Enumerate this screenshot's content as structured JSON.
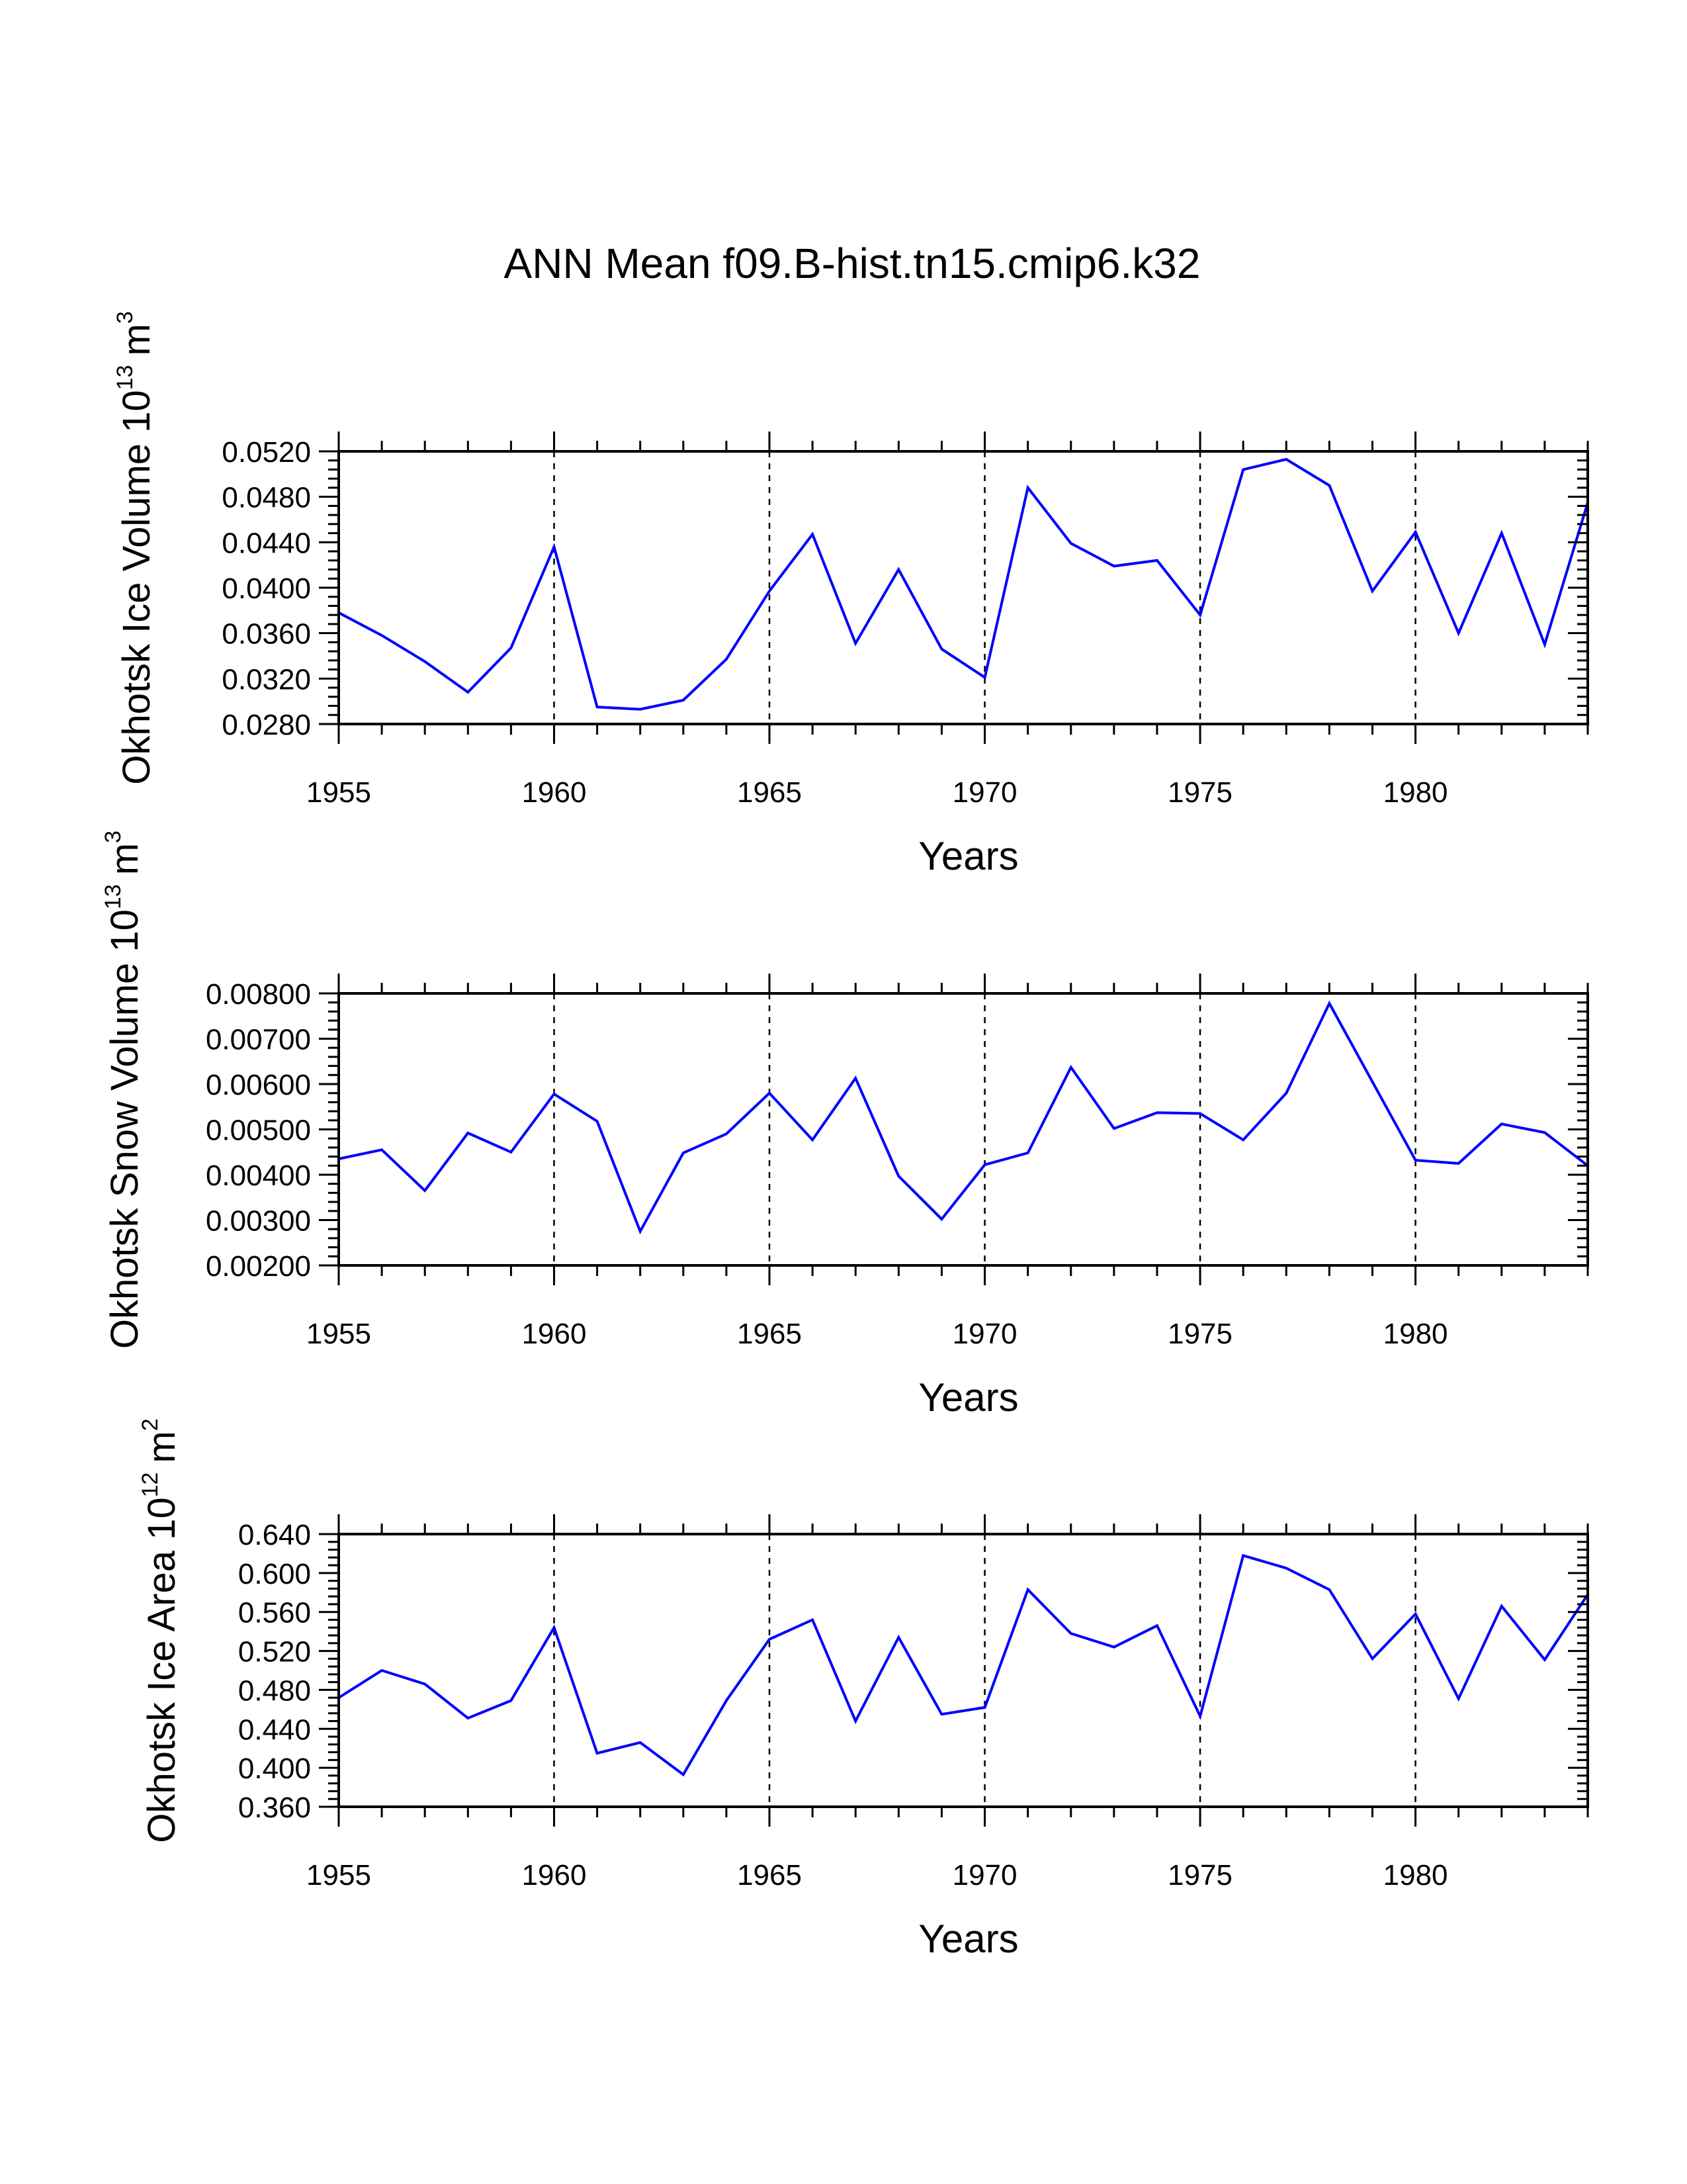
{
  "title": "ANN Mean f09.B-hist.tn15.cmip6.k32",
  "colors": {
    "line": "#0000ff",
    "axes": "#000000",
    "grid": "#000000",
    "background": "#ffffff"
  },
  "chart_data": [
    {
      "type": "line",
      "title": "",
      "xlabel": "Years",
      "ylabel": "Okhotsk Ice Volume 10",
      "ylabel_exponent": "13",
      "ylabel_unit": "m",
      "ylabel_unit_exponent": "3",
      "xlim": [
        1955,
        1984
      ],
      "ylim": [
        0.028,
        0.052
      ],
      "xticks": [
        1955,
        1960,
        1965,
        1970,
        1975,
        1980
      ],
      "xtick_labels": [
        "1955",
        "1960",
        "1965",
        "1970",
        "1975",
        "1980"
      ],
      "yticks": [
        0.028,
        0.032,
        0.036,
        0.04,
        0.044,
        0.048,
        0.052
      ],
      "ytick_labels": [
        "0.0280",
        "0.0320",
        "0.0360",
        "0.0400",
        "0.0440",
        "0.0480",
        "0.0520"
      ],
      "grid": "dashed vertical lines at labeled years",
      "series": [
        {
          "name": "Okhotsk Ice Volume",
          "x": [
            1955,
            1956,
            1957,
            1958,
            1959,
            1960,
            1961,
            1962,
            1963,
            1964,
            1965,
            1966,
            1967,
            1968,
            1969,
            1970,
            1971,
            1972,
            1973,
            1974,
            1975,
            1976,
            1977,
            1978,
            1979,
            1980,
            1981,
            1982,
            1983,
            1984
          ],
          "values": [
            0.0378,
            0.0358,
            0.0335,
            0.0308,
            0.0347,
            0.0436,
            0.0295,
            0.0293,
            0.0301,
            0.0337,
            0.0397,
            0.0447,
            0.0351,
            0.0416,
            0.0346,
            0.0321,
            0.0488,
            0.0439,
            0.0419,
            0.0424,
            0.0376,
            0.0504,
            0.0513,
            0.049,
            0.0397,
            0.0449,
            0.036,
            0.0448,
            0.035,
            0.0475
          ]
        }
      ]
    },
    {
      "type": "line",
      "title": "",
      "xlabel": "Years",
      "ylabel": "Okhotsk Snow Volume 10",
      "ylabel_exponent": "13",
      "ylabel_unit": "m",
      "ylabel_unit_exponent": "3",
      "xlim": [
        1955,
        1984
      ],
      "ylim": [
        0.002,
        0.008
      ],
      "xticks": [
        1955,
        1960,
        1965,
        1970,
        1975,
        1980
      ],
      "xtick_labels": [
        "1955",
        "1960",
        "1965",
        "1970",
        "1975",
        "1980"
      ],
      "yticks": [
        0.002,
        0.003,
        0.004,
        0.005,
        0.006,
        0.007,
        0.008
      ],
      "ytick_labels": [
        "0.00200",
        "0.00300",
        "0.00400",
        "0.00500",
        "0.00600",
        "0.00700",
        "0.00800"
      ],
      "grid": "dashed vertical lines at labeled years",
      "series": [
        {
          "name": "Okhotsk Snow Volume",
          "x": [
            1955,
            1956,
            1957,
            1958,
            1959,
            1960,
            1961,
            1962,
            1963,
            1964,
            1965,
            1966,
            1967,
            1968,
            1969,
            1970,
            1971,
            1972,
            1973,
            1974,
            1975,
            1976,
            1977,
            1978,
            1979,
            1980,
            1981,
            1982,
            1983,
            1984
          ],
          "values": [
            0.00435,
            0.00455,
            0.00365,
            0.00492,
            0.0045,
            0.00578,
            0.00518,
            0.00275,
            0.00448,
            0.0049,
            0.0058,
            0.00477,
            0.00613,
            0.00397,
            0.00302,
            0.00422,
            0.00448,
            0.00637,
            0.00502,
            0.00537,
            0.00535,
            0.00477,
            0.0058,
            0.00778,
            0.00605,
            0.00432,
            0.00425,
            0.00512,
            0.00493,
            0.0042
          ]
        }
      ]
    },
    {
      "type": "line",
      "title": "",
      "xlabel": "Years",
      "ylabel": "Okhotsk Ice Area 10",
      "ylabel_exponent": "12",
      "ylabel_unit": "m",
      "ylabel_unit_exponent": "2",
      "xlim": [
        1955,
        1984
      ],
      "ylim": [
        0.36,
        0.64
      ],
      "xticks": [
        1955,
        1960,
        1965,
        1970,
        1975,
        1980
      ],
      "xtick_labels": [
        "1955",
        "1960",
        "1965",
        "1970",
        "1975",
        "1980"
      ],
      "yticks": [
        0.36,
        0.4,
        0.44,
        0.48,
        0.52,
        0.56,
        0.6,
        0.64
      ],
      "ytick_labels": [
        "0.360",
        "0.400",
        "0.440",
        "0.480",
        "0.520",
        "0.560",
        "0.600",
        "0.640"
      ],
      "grid": "dashed vertical lines at labeled years",
      "series": [
        {
          "name": "Okhotsk Ice Area",
          "x": [
            1955,
            1956,
            1957,
            1958,
            1959,
            1960,
            1961,
            1962,
            1963,
            1964,
            1965,
            1966,
            1967,
            1968,
            1969,
            1970,
            1971,
            1972,
            1973,
            1974,
            1975,
            1976,
            1977,
            1978,
            1979,
            1980,
            1981,
            1982,
            1983,
            1984
          ],
          "values": [
            0.472,
            0.5,
            0.486,
            0.451,
            0.469,
            0.544,
            0.415,
            0.426,
            0.393,
            0.469,
            0.532,
            0.552,
            0.448,
            0.534,
            0.455,
            0.462,
            0.583,
            0.538,
            0.524,
            0.546,
            0.453,
            0.618,
            0.605,
            0.583,
            0.512,
            0.558,
            0.471,
            0.566,
            0.511,
            0.578
          ]
        }
      ]
    }
  ]
}
